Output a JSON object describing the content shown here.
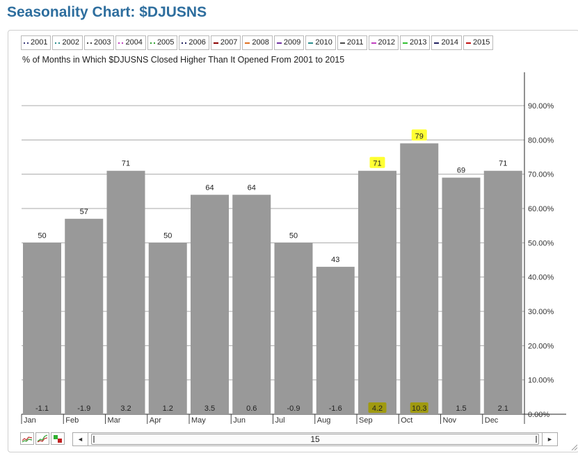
{
  "page": {
    "title": "Seasonality Chart: $DJUSNS"
  },
  "legend": [
    {
      "label": "2001",
      "color": "#3a3a7a",
      "style": "dotted"
    },
    {
      "label": "2002",
      "color": "#2a8c8c",
      "style": "dotted"
    },
    {
      "label": "2003",
      "color": "#4a4a4a",
      "style": "dotted"
    },
    {
      "label": "2004",
      "color": "#c040c0",
      "style": "dotted"
    },
    {
      "label": "2005",
      "color": "#30a030",
      "style": "dotted"
    },
    {
      "label": "2006",
      "color": "#202060",
      "style": "dotted"
    },
    {
      "label": "2007",
      "color": "#8b0000",
      "style": "solid"
    },
    {
      "label": "2008",
      "color": "#e07020",
      "style": "solid"
    },
    {
      "label": "2009",
      "color": "#7030a0",
      "style": "solid"
    },
    {
      "label": "2010",
      "color": "#2a8c8c",
      "style": "solid"
    },
    {
      "label": "2011",
      "color": "#4a4a4a",
      "style": "solid"
    },
    {
      "label": "2012",
      "color": "#c040c0",
      "style": "solid"
    },
    {
      "label": "2013",
      "color": "#30c030",
      "style": "solid"
    },
    {
      "label": "2014",
      "color": "#202060",
      "style": "solid"
    },
    {
      "label": "2015",
      "color": "#c01010",
      "style": "solid"
    }
  ],
  "chart_data": {
    "type": "bar",
    "title": "Seasonality Chart: $DJUSNS",
    "subtitle": "% of Months in Which $DJUSNS Closed Higher Than It Opened From 2001 to 2015",
    "categories": [
      "Jan",
      "Feb",
      "Mar",
      "Apr",
      "May",
      "Jun",
      "Jul",
      "Aug",
      "Sep",
      "Oct",
      "Nov",
      "Dec"
    ],
    "values": [
      50,
      57,
      71,
      50,
      64,
      64,
      50,
      43,
      71,
      79,
      69,
      71
    ],
    "avg_returns": [
      "-1.1",
      "-1.9",
      "3.2",
      "1.2",
      "3.5",
      "0.6",
      "-0.9",
      "-1.6",
      "4.2",
      "10.3",
      "1.5",
      "2.1"
    ],
    "highlighted": [
      "Sep",
      "Oct"
    ],
    "ylim": [
      0,
      100
    ],
    "yticks": [
      "0.00%",
      "10.00%",
      "20.00%",
      "30.00%",
      "40.00%",
      "50.00%",
      "60.00%",
      "70.00%",
      "80.00%",
      "90.00%"
    ],
    "y_axis_side": "right",
    "grid": true,
    "bar_color": "#999999",
    "highlight_label_color": "#ffff33",
    "highlight_return_color": "#a09a10"
  },
  "scroller": {
    "value": "15",
    "left_arrow": "◄",
    "right_arrow": "►"
  }
}
